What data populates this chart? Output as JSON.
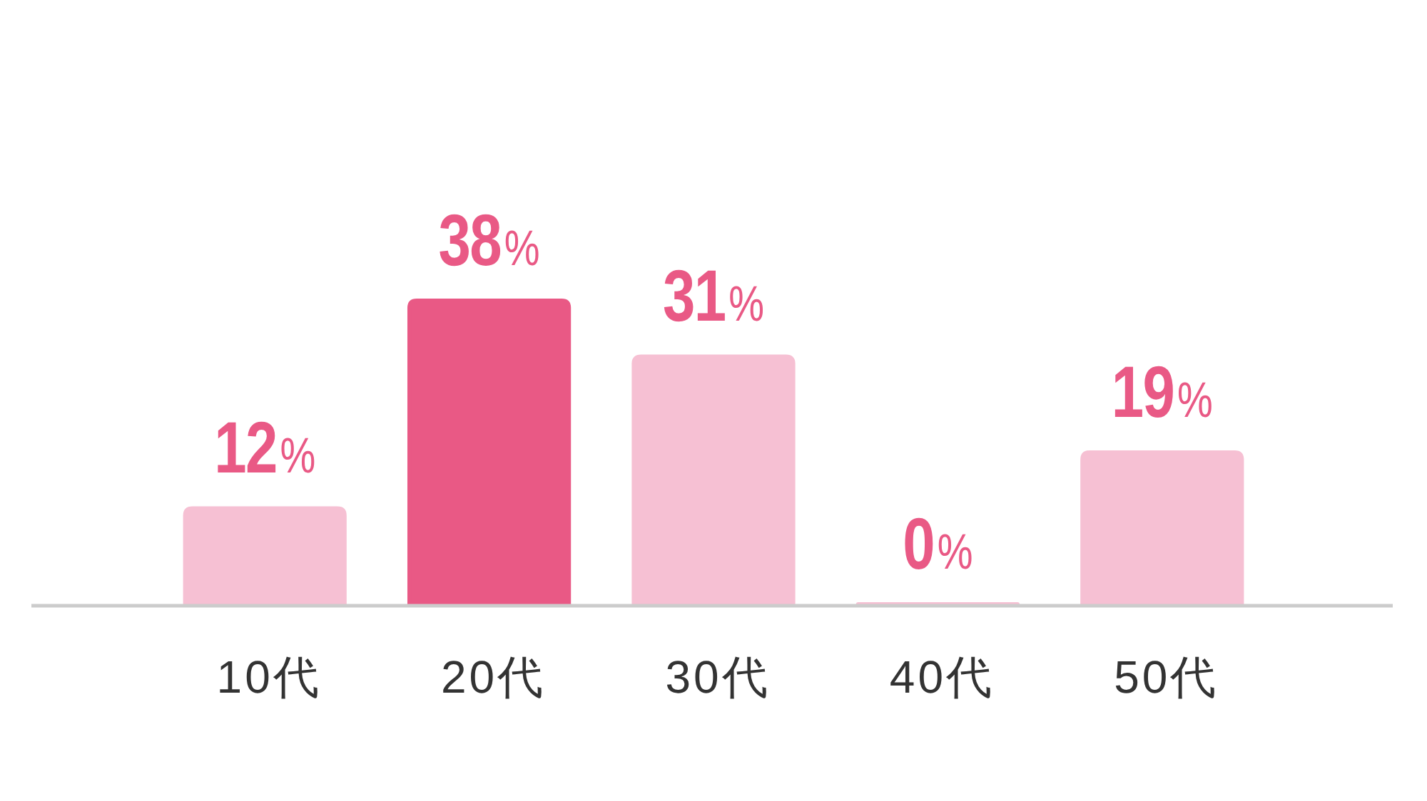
{
  "chart_data": {
    "type": "bar",
    "categories": [
      "10代",
      "20代",
      "30代",
      "40代",
      "50代"
    ],
    "values": [
      12,
      38,
      31,
      0,
      19
    ],
    "colors": [
      "#f6c0d3",
      "#e95985",
      "#f6c0d3",
      "#f6c0d3",
      "#f6c0d3"
    ],
    "value_labels": [
      "12%",
      "38%",
      "31%",
      "0%",
      "19%"
    ],
    "tick_labels": "x"
  }
}
